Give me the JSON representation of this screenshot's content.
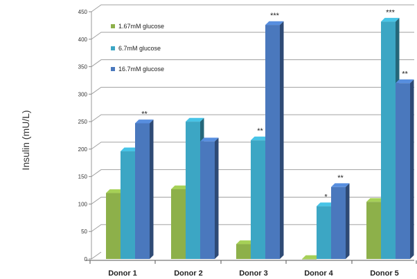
{
  "chart_data": {
    "type": "bar",
    "title": "",
    "xlabel": "",
    "ylabel": "Insulin (mU/L)",
    "ylim": [
      0,
      450
    ],
    "yticks": [
      0,
      50,
      100,
      150,
      200,
      250,
      300,
      350,
      400,
      450
    ],
    "categories": [
      "Donor 1",
      "Donor 2",
      "Donor 3",
      "Donor 4",
      "Donor 5"
    ],
    "series": [
      {
        "name": "1.67mM glucose",
        "color": "#8db04a",
        "values": [
          120,
          127,
          27,
          0,
          104
        ],
        "significance": [
          "",
          "",
          "",
          "",
          ""
        ]
      },
      {
        "name": "6.7mM glucose",
        "color": "#3ca6c4",
        "values": [
          196,
          250,
          216,
          96,
          432
        ],
        "significance": [
          "",
          "",
          "**",
          "*",
          "***"
        ]
      },
      {
        "name": "16.7mM glucose",
        "color": "#4a78bd",
        "values": [
          247,
          214,
          426,
          131,
          320
        ],
        "significance": [
          "**",
          "",
          "***",
          "**",
          "**"
        ]
      }
    ],
    "legend_position": "top-left",
    "grid": true
  }
}
